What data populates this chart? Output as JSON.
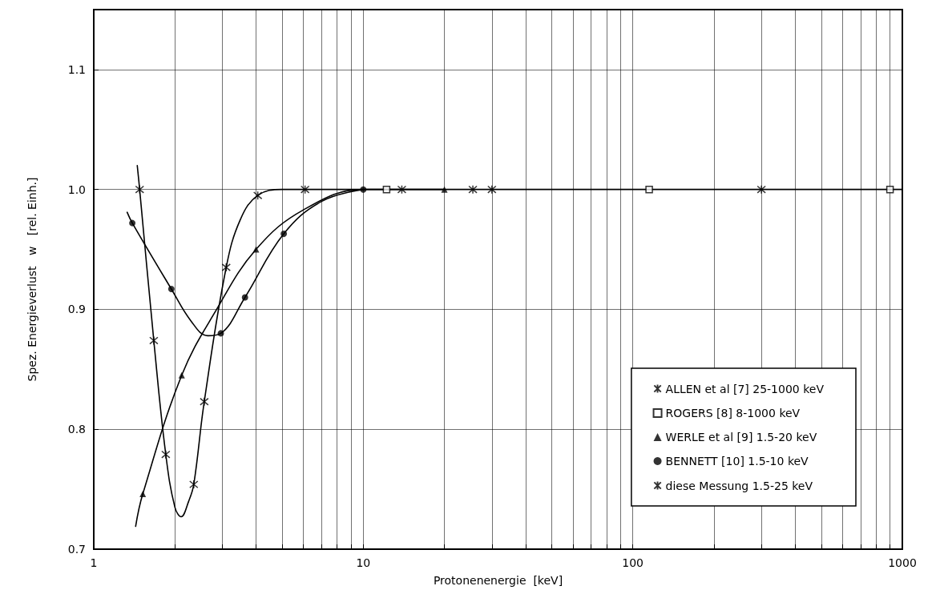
{
  "chart_data": {
    "type": "scatter",
    "xlabel": "Protonenenergie  [keV]",
    "ylabel": "Spez. Energieverlust   w   [rel. Einh.]",
    "log": "x",
    "xlim": [
      1,
      1000
    ],
    "xticks": [
      1,
      {
        "value": 2,
        "label": null
      },
      {
        "value": 3,
        "label": null
      },
      {
        "value": 4,
        "label": null
      },
      {
        "value": 5,
        "label": null
      },
      {
        "value": 6,
        "label": null
      },
      {
        "value": 7,
        "label": null
      },
      {
        "value": 8,
        "label": null
      },
      {
        "value": 9,
        "label": null
      },
      10,
      {
        "value": 20,
        "label": null
      },
      {
        "value": 30,
        "label": null
      },
      {
        "value": 40,
        "label": null
      },
      {
        "value": 50,
        "label": null
      },
      {
        "value": 60,
        "label": null
      },
      {
        "value": 70,
        "label": null
      },
      {
        "value": 80,
        "label": null
      },
      {
        "value": 90,
        "label": null
      },
      100,
      {
        "value": 200,
        "label": null
      },
      {
        "value": 300,
        "label": null
      },
      {
        "value": 400,
        "label": null
      },
      {
        "value": 500,
        "label": null
      },
      {
        "value": 600,
        "label": null
      },
      {
        "value": 700,
        "label": null
      },
      {
        "value": 800,
        "label": null
      },
      {
        "value": 900,
        "label": null
      },
      1000
    ],
    "ylim": [
      0.7,
      1.15
    ],
    "yticks": [
      0.7,
      0.8,
      0.9,
      {
        "value": 1.0,
        "label": "1.0"
      },
      1.1
    ],
    "grid": true,
    "legend": "bottom right",
    "series": [
      {
        "name": "ALLEN et al [7] 25-1000 keV",
        "marker": "cross",
        "color": "#000000",
        "x": [
          30,
          300
        ],
        "values": [
          1.0,
          1.0
        ]
      },
      {
        "name": "ROGERS [8] 8-1000 keV",
        "marker": "square",
        "color": "#000000",
        "x": [
          12.2,
          115,
          900
        ],
        "values": [
          1.0,
          1.0,
          1.0
        ]
      },
      {
        "name": "WERLE et al [9] 1.5-20 keV",
        "marker": "triangle",
        "color": "#000000",
        "x": [
          1.52,
          2.12,
          4.0,
          20
        ],
        "values": [
          0.746,
          0.845,
          0.95,
          1.0
        ]
      },
      {
        "name": "BENNETT [10] 1.5-10 keV",
        "marker": "circle",
        "color": "#000000",
        "x": [
          1.39,
          1.94,
          2.96,
          3.64,
          5.07,
          10
        ],
        "values": [
          0.972,
          0.917,
          0.88,
          0.91,
          0.963,
          1.0
        ]
      },
      {
        "name": "diese Messung 1.5-25 keV",
        "marker": "cross",
        "color": "#000000",
        "x": [
          1.48,
          1.67,
          1.85,
          2.35,
          2.57,
          3.1,
          4.06,
          6.08,
          13.9,
          25.5
        ],
        "values": [
          1.0,
          0.874,
          0.779,
          0.754,
          0.823,
          0.935,
          0.995,
          1.0,
          1.0,
          1.0
        ]
      },
      {
        "type": "line",
        "marker": "none",
        "line_style": "solid",
        "color": "#000000",
        "x": [
          1.45,
          1.48,
          1.67,
          1.85,
          2.0,
          2.11,
          2.25,
          2.35,
          2.57,
          3.1,
          3.5,
          4.06,
          5,
          10
        ],
        "values": [
          1.02,
          1.0,
          0.874,
          0.779,
          0.735,
          0.727,
          0.74,
          0.754,
          0.823,
          0.935,
          0.975,
          0.995,
          1.0,
          1.0
        ]
      },
      {
        "type": "line",
        "marker": "none",
        "line_style": "solid",
        "color": "#000000",
        "x": [
          1.33,
          1.39,
          1.94,
          2.3,
          2.65,
          2.96,
          3.64,
          5.07,
          7,
          10
        ],
        "values": [
          0.981,
          0.972,
          0.917,
          0.89,
          0.878,
          0.88,
          0.91,
          0.963,
          0.99,
          1.0
        ]
      },
      {
        "type": "line",
        "marker": "none",
        "line_style": "solid",
        "color": "#000000",
        "x": [
          1.43,
          1.52,
          2.12,
          2.84,
          4.0,
          6.0,
          10,
          20
        ],
        "values": [
          0.719,
          0.746,
          0.845,
          0.899,
          0.95,
          0.983,
          1.0,
          1.0
        ]
      },
      {
        "type": "line",
        "marker": "none",
        "line_style": "solid",
        "color": "#000000",
        "x": [
          10,
          1000
        ],
        "values": [
          1.0,
          1.0
        ]
      }
    ]
  }
}
